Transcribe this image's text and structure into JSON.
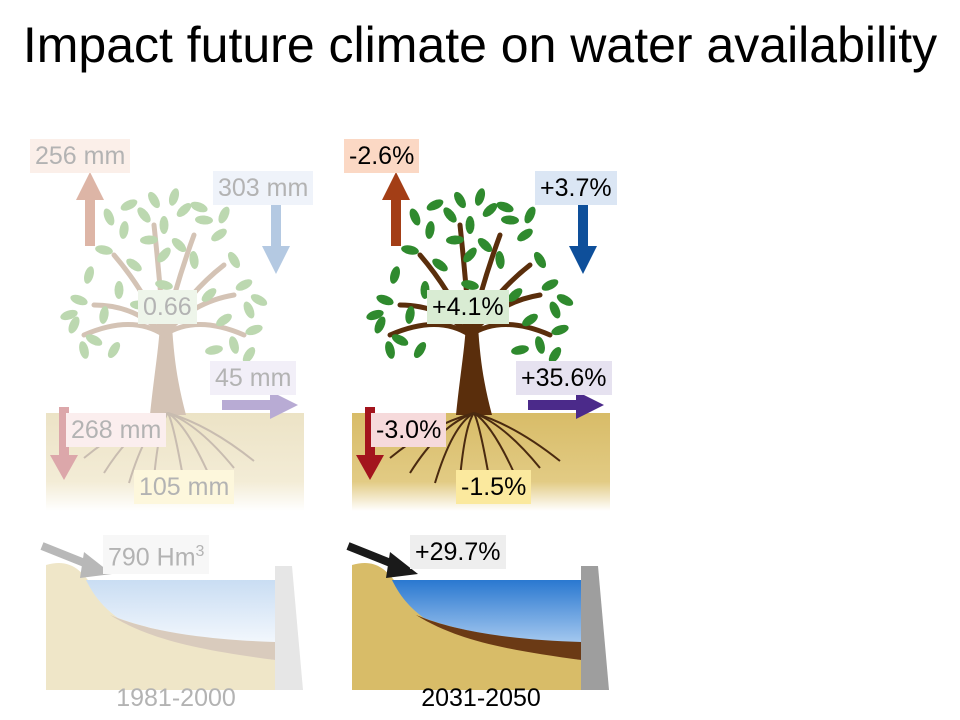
{
  "title": "Impact future climate on water availability",
  "panels": [
    {
      "period": "1981-2000",
      "evapotranspiration": "256 mm",
      "precipitation": "303 mm",
      "vegetation": "0.66",
      "lateral_flow": "45 mm",
      "percolation": "268 mm",
      "groundwater": "105 mm",
      "reservoir_inflow_value": "790 Hm",
      "reservoir_inflow_sup": "3"
    },
    {
      "period": "2031-2050",
      "evapotranspiration": "-2.6%",
      "precipitation": "+3.7%",
      "vegetation": "+4.1%",
      "lateral_flow": "+35.6%",
      "percolation": "-3.0%",
      "groundwater": "-1.5%",
      "reservoir_inflow_value": "+29.7%"
    }
  ],
  "colors": {
    "et_arrow": [
      "#ddb5a6",
      "#a33e16"
    ],
    "precip_arrow": [
      "#b4c9e2",
      "#0e4f9a"
    ],
    "lateral_arrow": [
      "#b8abd4",
      "#4b2a8a"
    ],
    "perc_arrow": [
      "#dca7aa",
      "#a3141d"
    ],
    "inflow_arrow": [
      "#b8b8b8",
      "#1a1a1a"
    ],
    "soil": [
      "#efe6c8",
      "#d8bc6a"
    ],
    "water": [
      "#cfe3f6",
      "#2f7fd4"
    ],
    "leaves": [
      "#bcd8b0",
      "#2f8a2e"
    ],
    "trunk": [
      "#d4c3b5",
      "#5a2e0c"
    ]
  },
  "icons": [
    "tree-icon",
    "soil-layer",
    "reservoir-dam",
    "et-arrow",
    "precipitation-arrow",
    "lateral-flow-arrow",
    "percolation-arrow",
    "inflow-arrow"
  ]
}
